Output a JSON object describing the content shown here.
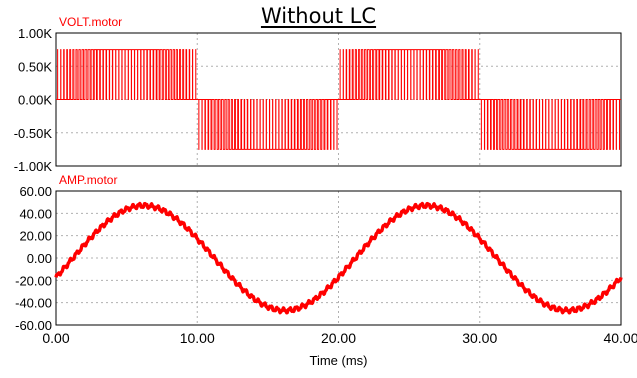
{
  "title": "Without LC",
  "colors": {
    "trace": "#ff0000",
    "label": "#ff0000",
    "grid": "#b0b0b0",
    "axis": "#000000",
    "background": "#ffffff"
  },
  "chart_data": [
    {
      "type": "line",
      "series": [
        {
          "name": "VOLT.motor",
          "waveform": "pwm",
          "fundamental_period_ms": 20,
          "phase_ms": 0,
          "levels": [
            -750,
            0,
            750
          ]
        }
      ],
      "xlim": [
        0,
        40
      ],
      "ylim": [
        -1000,
        1000
      ],
      "yticks": [
        "1.00K",
        "0.50K",
        "0.00K",
        "-0.50K",
        "-1.00K"
      ],
      "ytick_values": [
        1000,
        500,
        0,
        -500,
        -1000
      ],
      "grid": true
    },
    {
      "type": "line",
      "series": [
        {
          "name": "AMP.motor",
          "amplitude": 47,
          "offset": 0,
          "period_ms": 20,
          "phase_ms": 1.2,
          "ripple_amplitude": 2
        }
      ],
      "xlim": [
        0,
        40
      ],
      "ylim": [
        -60,
        60
      ],
      "yticks": [
        "60.00",
        "40.00",
        "20.00",
        "0.00",
        "-20.00",
        "-40.00",
        "-60.00"
      ],
      "ytick_values": [
        60,
        40,
        20,
        0,
        -20,
        -40,
        -60
      ],
      "xticks": [
        "0.00",
        "10.00",
        "20.00",
        "30.00",
        "40.00"
      ],
      "xtick_values": [
        0,
        10,
        20,
        30,
        40
      ],
      "xlabel": "Time (ms)",
      "grid": true
    }
  ]
}
